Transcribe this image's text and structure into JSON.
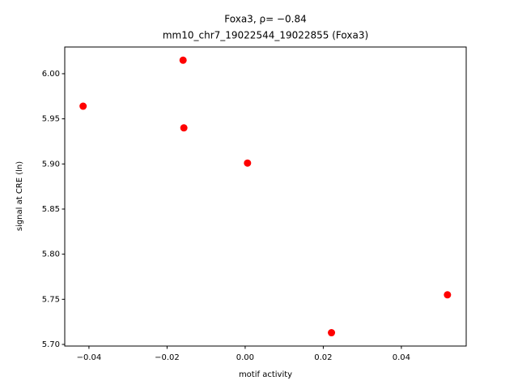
{
  "chart_data": {
    "type": "scatter",
    "title": "Foxa3, ρ= −0.84",
    "subtitle": "mm10_chr7_19022544_19022855 (Foxa3)",
    "x_label": "motif activity",
    "y_label": "signal at CRE (ln)",
    "color": "#ff0000",
    "x": [
      -0.0415,
      -0.0159,
      -0.0157,
      0.0006,
      0.0518,
      0.0221
    ],
    "values": [
      5.964,
      6.015,
      5.94,
      5.901,
      5.755,
      5.713
    ],
    "xlim": [
      -0.0462,
      0.0566
    ],
    "ylim": [
      5.6982,
      6.0296
    ],
    "xticks": [
      {
        "value": -0.04,
        "label": "−0.04"
      },
      {
        "value": -0.02,
        "label": "−0.02"
      },
      {
        "value": 0,
        "label": "0.00"
      },
      0.02,
      0.04
    ],
    "yticks": [
      {
        "value": 5.7,
        "label": "5.70"
      },
      5.75,
      {
        "value": 5.8,
        "label": "5.80"
      },
      5.85,
      {
        "value": 5.9,
        "label": "5.90"
      },
      5.95,
      {
        "value": 6.0,
        "label": "6.00"
      }
    ]
  }
}
